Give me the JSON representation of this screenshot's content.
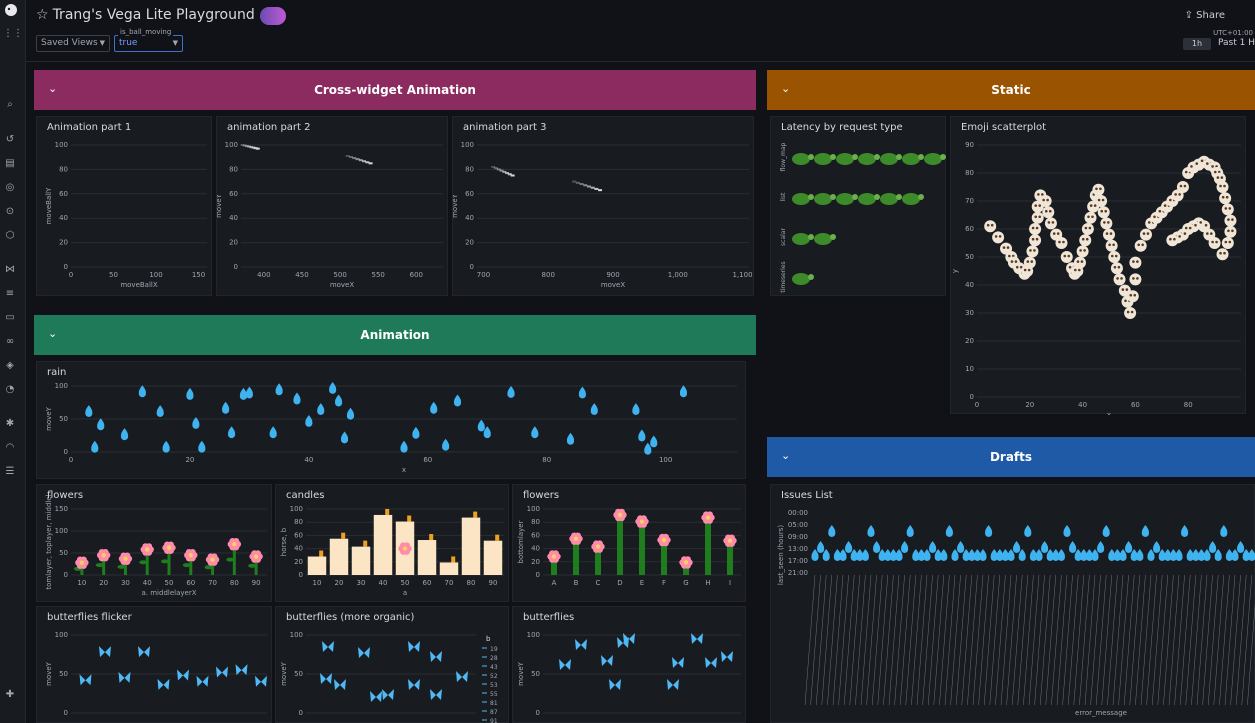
{
  "app": {
    "dashboard_title": "Trang's Vega Lite Playground",
    "share_label": "Share",
    "timezone": "UTC+01:00",
    "time_button": "1h",
    "time_range": "Past 1 H",
    "saved_views": "Saved Views",
    "variable_label": "is_ball_moving",
    "variable_value": "true"
  },
  "rows": {
    "cross": "Cross-widget Animation",
    "static": "Static",
    "animation": "Animation",
    "drafts": "Drafts"
  },
  "colors": {
    "cross": "#8b2b5f",
    "static": "#9a5300",
    "animation": "#1e7a58",
    "drafts": "#1f5aa6",
    "drop": "#3fb2f0",
    "butterfly": "#4fb8f5",
    "bar": "#fce5c4",
    "bar_accent": "#f0a020",
    "stem": "#1e7e1e",
    "flower": "#ff8aaa"
  },
  "panels": {
    "anim1": "Animation part 1",
    "anim2": "animation part 2",
    "anim3": "animation part 3",
    "latency": "Latency by request type",
    "emoji": "Emoji scatterplot",
    "rain": "rain",
    "flowers1": "flowers",
    "candles": "candles",
    "flowers2": "flowers",
    "bf1": "butterflies flicker",
    "bf2": "butterflies (more organic)",
    "bf3": "butterflies",
    "issues": "Issues List"
  },
  "chart_data": [
    {
      "id": "anim1",
      "type": "scatter",
      "title": "Animation part 1",
      "xlabel": "moveBallX",
      "ylabel": "moveBallY",
      "xlim": [
        0,
        160
      ],
      "ylim": [
        0,
        100
      ],
      "xticks": [
        0,
        50,
        100,
        150
      ],
      "yticks": [
        0,
        20,
        40,
        60,
        80,
        100
      ],
      "points": []
    },
    {
      "id": "anim2",
      "type": "scatter",
      "title": "animation part 2",
      "xlabel": "moveX",
      "ylabel": "moveY",
      "xlim": [
        370,
        635
      ],
      "ylim": [
        0,
        100
      ],
      "xticks": [
        400,
        450,
        500,
        550,
        600
      ],
      "yticks": [
        0,
        20,
        40,
        60,
        80,
        100
      ],
      "trails": [
        [
          [
            372,
            100
          ],
          [
            392,
            97
          ]
        ],
        [
          [
            510,
            91
          ],
          [
            540,
            85
          ]
        ]
      ]
    },
    {
      "id": "anim3",
      "type": "scatter",
      "title": "animation part 3",
      "xlabel": "moveX",
      "ylabel": "moveY",
      "xlim": [
        690,
        1110
      ],
      "ylim": [
        0,
        100
      ],
      "xticks": [
        700,
        800,
        900,
        "1,000",
        "1,100"
      ],
      "yticks": [
        0,
        20,
        40,
        60,
        80,
        100
      ],
      "trails": [
        [
          [
            715,
            82
          ],
          [
            745,
            75
          ]
        ],
        [
          [
            840,
            70
          ],
          [
            880,
            63
          ]
        ]
      ]
    },
    {
      "id": "latency",
      "type": "table",
      "title": "Latency by request type",
      "categories": [
        "flow_map",
        "list",
        "scalar",
        "timeseries"
      ],
      "values": [
        7,
        6,
        2,
        1
      ]
    },
    {
      "id": "emoji",
      "type": "scatter",
      "title": "Emoji scatterplot",
      "xlabel": "x",
      "ylabel": "y",
      "xlim": [
        0,
        100
      ],
      "ylim": [
        0,
        90
      ],
      "xticks": [
        0,
        20,
        40,
        60,
        80
      ],
      "yticks": [
        0,
        10,
        20,
        30,
        40,
        50,
        60,
        70,
        80,
        90
      ],
      "x": [
        5,
        8,
        11,
        13,
        14,
        16,
        18,
        19,
        20,
        21,
        22,
        22,
        23,
        23,
        24,
        26,
        27,
        28,
        30,
        32,
        34,
        36,
        37,
        38,
        39,
        40,
        41,
        42,
        43,
        44,
        45,
        46,
        47,
        48,
        49,
        50,
        51,
        52,
        53,
        54,
        56,
        57,
        58,
        59,
        60,
        60,
        62,
        64,
        66,
        68,
        70,
        72,
        74,
        76,
        78,
        80,
        82,
        84,
        86,
        88,
        90,
        91,
        92,
        93,
        94,
        95,
        96,
        96,
        95,
        93,
        90,
        88,
        86,
        84,
        82,
        80,
        78,
        76,
        74
      ],
      "y": [
        61,
        57,
        53,
        50,
        48,
        46,
        44,
        45,
        48,
        52,
        56,
        60,
        64,
        68,
        72,
        70,
        66,
        62,
        58,
        55,
        50,
        46,
        44,
        45,
        48,
        52,
        56,
        60,
        64,
        68,
        72,
        74,
        70,
        66,
        62,
        58,
        54,
        50,
        46,
        42,
        38,
        34,
        30,
        36,
        42,
        48,
        54,
        58,
        62,
        64,
        66,
        68,
        70,
        72,
        75,
        80,
        82,
        83,
        84,
        83,
        82,
        80,
        78,
        75,
        71,
        67,
        63,
        59,
        55,
        51,
        55,
        58,
        61,
        62,
        61,
        60,
        58,
        57,
        56
      ]
    },
    {
      "id": "rain",
      "type": "scatter",
      "title": "rain",
      "xlabel": "x",
      "ylabel": "moveY",
      "xlim": [
        0,
        112
      ],
      "ylim": [
        0,
        100
      ],
      "xticks": [
        0,
        20,
        40,
        60,
        80,
        100
      ],
      "yticks": [
        0,
        50,
        100
      ],
      "x": [
        3,
        4,
        5,
        9,
        12,
        15,
        16,
        20,
        21,
        22,
        26,
        27,
        29,
        30,
        34,
        35,
        38,
        40,
        42,
        44,
        45,
        46,
        47,
        56,
        58,
        61,
        63,
        65,
        69,
        70,
        74,
        78,
        84,
        86,
        88,
        95,
        96,
        97,
        98,
        103
      ],
      "y": [
        62,
        8,
        42,
        27,
        92,
        62,
        8,
        88,
        44,
        8,
        67,
        30,
        88,
        90,
        30,
        95,
        81,
        47,
        65,
        97,
        78,
        22,
        58,
        8,
        29,
        67,
        11,
        78,
        40,
        30,
        91,
        30,
        20,
        90,
        65,
        65,
        25,
        5,
        16,
        92
      ]
    },
    {
      "id": "flowers1",
      "type": "bar",
      "title": "flowers",
      "xlabel": "a. middlelayerX",
      "ylabel": "tomlayer, toplayer, middlel",
      "categories": [
        10,
        20,
        30,
        40,
        50,
        60,
        70,
        80,
        90
      ],
      "values": [
        28,
        45,
        37,
        58,
        62,
        45,
        35,
        70,
        42
      ],
      "ylim": [
        0,
        150
      ],
      "yticks": [
        0,
        50,
        100,
        150
      ]
    },
    {
      "id": "candles",
      "type": "bar",
      "title": "candles",
      "xlabel": "a",
      "ylabel": "horse, b",
      "categories": [
        10,
        20,
        30,
        40,
        50,
        60,
        70,
        80,
        90
      ],
      "values": [
        28,
        55,
        43,
        91,
        81,
        53,
        19,
        87,
        52
      ],
      "ylim": [
        0,
        100
      ],
      "yticks": [
        0,
        20,
        40,
        60,
        80,
        100
      ]
    },
    {
      "id": "flowers2",
      "type": "bar",
      "title": "flowers",
      "xlabel": "",
      "ylabel": "bottomlayer",
      "categories": [
        "A",
        "B",
        "C",
        "D",
        "E",
        "F",
        "G",
        "H",
        "I"
      ],
      "values": [
        28,
        55,
        43,
        91,
        81,
        53,
        19,
        87,
        52
      ],
      "ylim": [
        0,
        100
      ],
      "yticks": [
        0,
        20,
        40,
        60,
        80,
        100
      ]
    },
    {
      "id": "bf1",
      "type": "scatter",
      "title": "butterflies flicker",
      "ylabel": "moveY",
      "ylim": [
        0,
        100
      ],
      "yticks": [
        0,
        50,
        100
      ],
      "x": [
        5,
        20,
        35,
        50,
        65,
        80,
        95,
        110,
        125,
        140
      ],
      "y": [
        42,
        78,
        45,
        78,
        36,
        48,
        40,
        52,
        55,
        40
      ]
    },
    {
      "id": "bf2",
      "type": "scatter",
      "title": "butterflies (more organic)",
      "ylabel": "moveY",
      "ylim": [
        0,
        100
      ],
      "yticks": [
        0,
        50,
        100
      ],
      "legend_title": "b",
      "legend": [
        "19",
        "28",
        "43",
        "52",
        "53",
        "55",
        "81",
        "87",
        "91"
      ]
    },
    {
      "id": "bf3",
      "type": "scatter",
      "title": "butterflies",
      "ylabel": "moveY",
      "ylim": [
        0,
        100
      ],
      "yticks": [
        0,
        50,
        100
      ]
    },
    {
      "id": "issues",
      "type": "scatter",
      "title": "Issues List",
      "xlabel": "error_message",
      "ylabel": "last_seen (hours)",
      "yticks": [
        "00:00",
        "05:00",
        "09:00",
        "13:00",
        "17:00",
        "21:00"
      ]
    }
  ]
}
